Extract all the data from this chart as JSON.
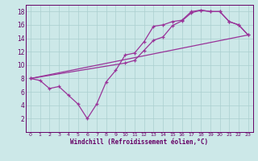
{
  "background_color": "#cce8e8",
  "line_color": "#993399",
  "xlim": [
    -0.5,
    23.5
  ],
  "ylim": [
    0,
    19
  ],
  "xticks": [
    0,
    1,
    2,
    3,
    4,
    5,
    6,
    7,
    8,
    9,
    10,
    11,
    12,
    13,
    14,
    15,
    16,
    17,
    18,
    19,
    20,
    21,
    22,
    23
  ],
  "yticks": [
    2,
    4,
    6,
    8,
    10,
    12,
    14,
    16,
    18
  ],
  "xlabel": "Windchill (Refroidissement éolien,°C)",
  "grid_color": "#aacfcf",
  "line1_x": [
    0,
    1,
    2,
    3,
    4,
    5,
    6,
    7,
    8,
    9,
    10,
    11,
    12,
    13,
    14,
    15,
    16,
    17,
    18,
    19,
    20,
    21,
    22,
    23
  ],
  "line1_y": [
    8.0,
    7.7,
    6.5,
    6.8,
    5.5,
    4.2,
    2.0,
    4.2,
    7.5,
    9.2,
    11.5,
    11.8,
    13.5,
    15.8,
    16.0,
    16.5,
    16.7,
    18.0,
    18.2,
    18.0,
    18.0,
    16.5,
    16.0,
    14.5
  ],
  "line2_x": [
    0,
    10,
    11,
    12,
    13,
    14,
    15,
    16,
    17,
    18,
    19,
    20,
    21,
    22,
    23
  ],
  "line2_y": [
    8.0,
    10.3,
    10.7,
    12.2,
    13.7,
    14.2,
    15.9,
    16.6,
    17.8,
    18.2,
    18.0,
    18.0,
    16.5,
    16.0,
    14.5
  ],
  "line3_x": [
    0,
    23
  ],
  "line3_y": [
    8.0,
    14.5
  ],
  "label_color": "#660066",
  "tick_fontsize": 5.5,
  "xlabel_fontsize": 5.5
}
